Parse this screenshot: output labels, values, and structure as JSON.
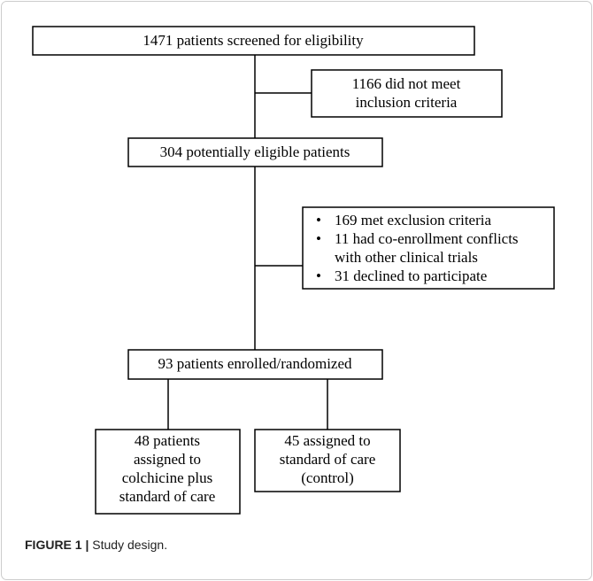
{
  "nodes": [
    {
      "lines": [
        "1471 patients screened for eligibility"
      ]
    },
    {
      "lines": [
        "1166 did not meet",
        "inclusion criteria"
      ]
    },
    {
      "lines": [
        "304 potentially eligible patients"
      ]
    },
    {
      "items": [
        [
          "169 met exclusion criteria"
        ],
        [
          "11 had co-enrollment conflicts",
          "with other clinical trials"
        ],
        [
          "31 declined to participate"
        ]
      ]
    },
    {
      "lines": [
        "93 patients enrolled/randomized"
      ]
    },
    {
      "lines": [
        "48 patients",
        "assigned to",
        "colchicine plus",
        "standard of care"
      ]
    },
    {
      "lines": [
        "45 assigned to",
        "standard of care",
        "(control)"
      ]
    }
  ],
  "caption": {
    "label": "FIGURE 1 |",
    "text": "Study design."
  }
}
